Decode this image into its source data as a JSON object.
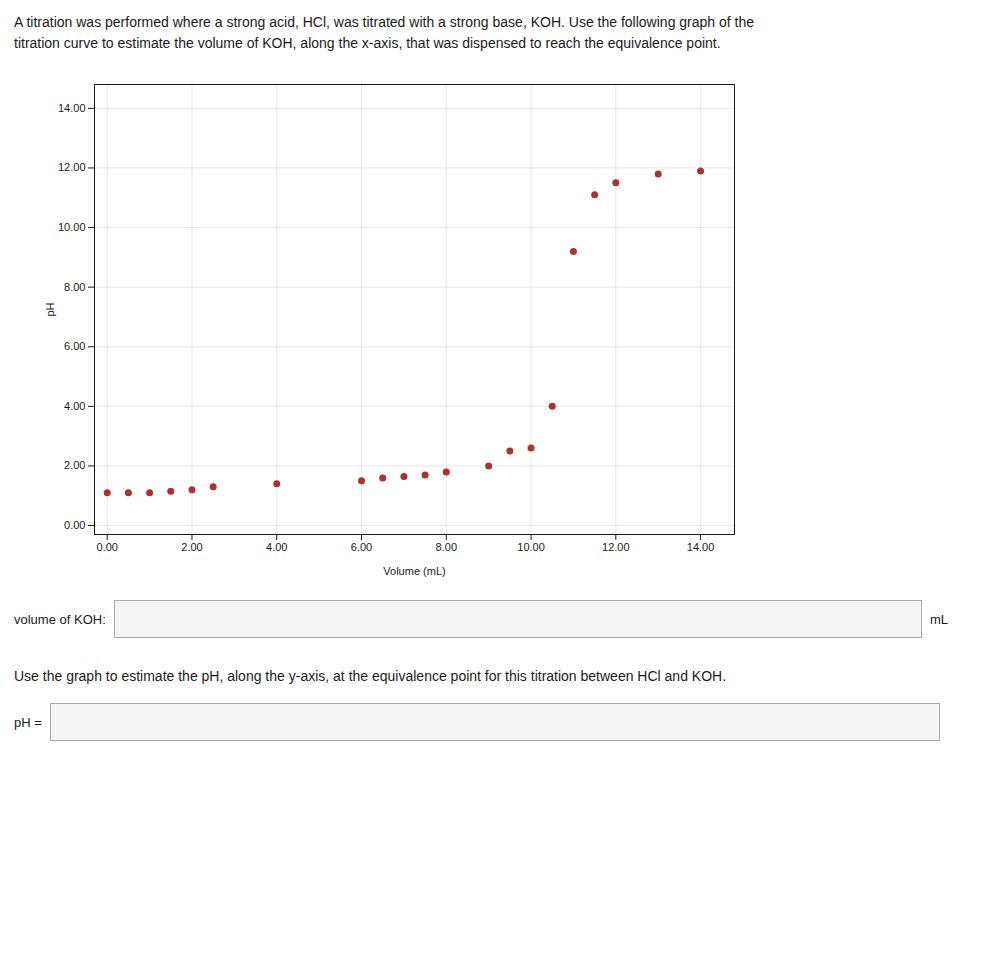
{
  "chart_data": {
    "type": "scatter",
    "title": "A titration was performed where a strong acid, HCl, was titrated with a strong base, KOH. Use the following graph of the\ntitration curve to estimate the volume of KOH, along the x-axis, that was dispensed to reach the equivalence point.",
    "x_label": "Volume (mL)",
    "y_label": "pH",
    "x": [
      0.0,
      0.5,
      1.0,
      1.5,
      2.0,
      2.5,
      4.0,
      6.0,
      6.5,
      7.0,
      7.5,
      8.0,
      9.0,
      9.5,
      10.0,
      10.5,
      11.0,
      11.5,
      12.0,
      13.0,
      14.0
    ],
    "values": [
      1.1,
      1.1,
      1.1,
      1.15,
      1.2,
      1.3,
      1.4,
      1.5,
      1.6,
      1.65,
      1.7,
      1.8,
      2.0,
      2.5,
      2.6,
      4.0,
      9.2,
      11.1,
      11.5,
      11.8,
      11.9
    ],
    "color": "#b03030",
    "xlim": [
      -0.3,
      14.8
    ],
    "ylim": [
      -0.3,
      14.8
    ],
    "xticks": [
      {
        "value": 0,
        "label": "0.00"
      },
      {
        "value": 2,
        "label": "2.00"
      },
      {
        "value": 4,
        "label": "4.00"
      },
      {
        "value": 6,
        "label": "6.00"
      },
      {
        "value": 8,
        "label": "8.00"
      },
      {
        "value": 10,
        "label": "10.00"
      },
      {
        "value": 12,
        "label": "12.00"
      },
      {
        "value": 14,
        "label": "14.00"
      }
    ],
    "yticks": [
      {
        "value": 0,
        "label": "0.00"
      },
      {
        "value": 2,
        "label": "2.00"
      },
      {
        "value": 4,
        "label": "4.00"
      },
      {
        "value": 6,
        "label": "6.00"
      },
      {
        "value": 8,
        "label": "8.00"
      },
      {
        "value": 10,
        "label": "10.00"
      },
      {
        "value": 12,
        "label": "12.00"
      },
      {
        "value": 14,
        "label": "14.00"
      }
    ],
    "grid": true,
    "annotations": [
      "volume of KOH:",
      "mL",
      "Use the graph to estimate the pH, along the y-axis, at the equivalence point for this titration between HCl and KOH.",
      "pH ="
    ]
  }
}
